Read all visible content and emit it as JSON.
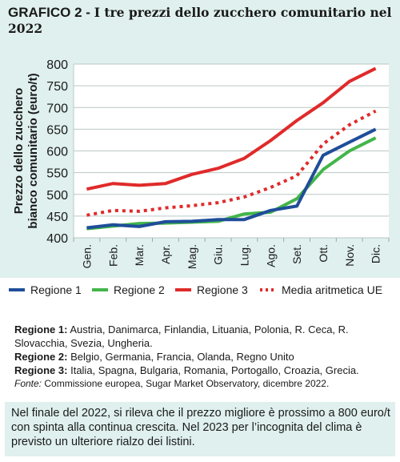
{
  "header": {
    "prefix": "GRAFICO 2 -",
    "title": "I tre prezzi dello zucchero comunitario nel 2022"
  },
  "colors": {
    "background": "#dff0ee",
    "regione_1": "#1f4e99",
    "regione_2": "#43b54a",
    "regione_3": "#e02a2a",
    "media_ue": "#e02a2a"
  },
  "chart_data": {
    "type": "line",
    "categories": [
      "Gen.",
      "Feb.",
      "Mar.",
      "Apr.",
      "Mag.",
      "Giu.",
      "Lug.",
      "Ago.",
      "Set.",
      "Ott.",
      "Nov.",
      "Dic."
    ],
    "ylabel": "Prezzo dello zucchero bianco comunitario (euro/t)",
    "ylim": [
      400,
      800
    ],
    "yticks": [
      400,
      450,
      500,
      550,
      600,
      650,
      700,
      750,
      800
    ],
    "grid": true,
    "legend_position": "bottom",
    "series": [
      {
        "name": "Regione 1",
        "style": "solid",
        "values": [
          423,
          430,
          426,
          437,
          438,
          442,
          442,
          463,
          473,
          590,
          620,
          650
        ]
      },
      {
        "name": "Regione 2",
        "style": "solid",
        "values": [
          421,
          427,
          433,
          434,
          436,
          438,
          455,
          459,
          490,
          557,
          600,
          630
        ]
      },
      {
        "name": "Regione 3",
        "style": "solid",
        "values": [
          512,
          525,
          521,
          525,
          546,
          560,
          583,
          624,
          670,
          711,
          760,
          790
        ]
      },
      {
        "name": "Media aritmetica UE",
        "style": "dotted",
        "values": [
          452,
          463,
          461,
          469,
          474,
          481,
          494,
          516,
          543,
          616,
          660,
          692
        ]
      }
    ]
  },
  "legend": {
    "items": [
      "Regione 1",
      "Regione 2",
      "Regione 3",
      "Media aritmetica UE"
    ]
  },
  "notes": {
    "r1_name": "Regione 1:",
    "r1_countries": "Austria, Danimarca, Finlandia, Lituania, Polonia, R. Ceca, R. Slovacchia, Svezia, Ungheria.",
    "r2_name": "Regione 2:",
    "r2_countries": "Belgio, Germania, Francia, Olanda, Regno Unito",
    "r3_name": "Regione 3:",
    "r3_countries": "Italia, Spagna, Bulgaria, Romania, Portogallo, Croazia, Grecia.",
    "source_label": "Fonte:",
    "source_text": "Commissione europea, Sugar Market Observatory, dicembre 2022."
  },
  "footer": {
    "text": "Nel finale del 2022, si rileva che il prezzo migliore è prossimo a 800 euro/t con spinta alla continua crescita. Nel 2023 per l’incognita del clima è previsto un ulteriore rialzo dei listini."
  }
}
